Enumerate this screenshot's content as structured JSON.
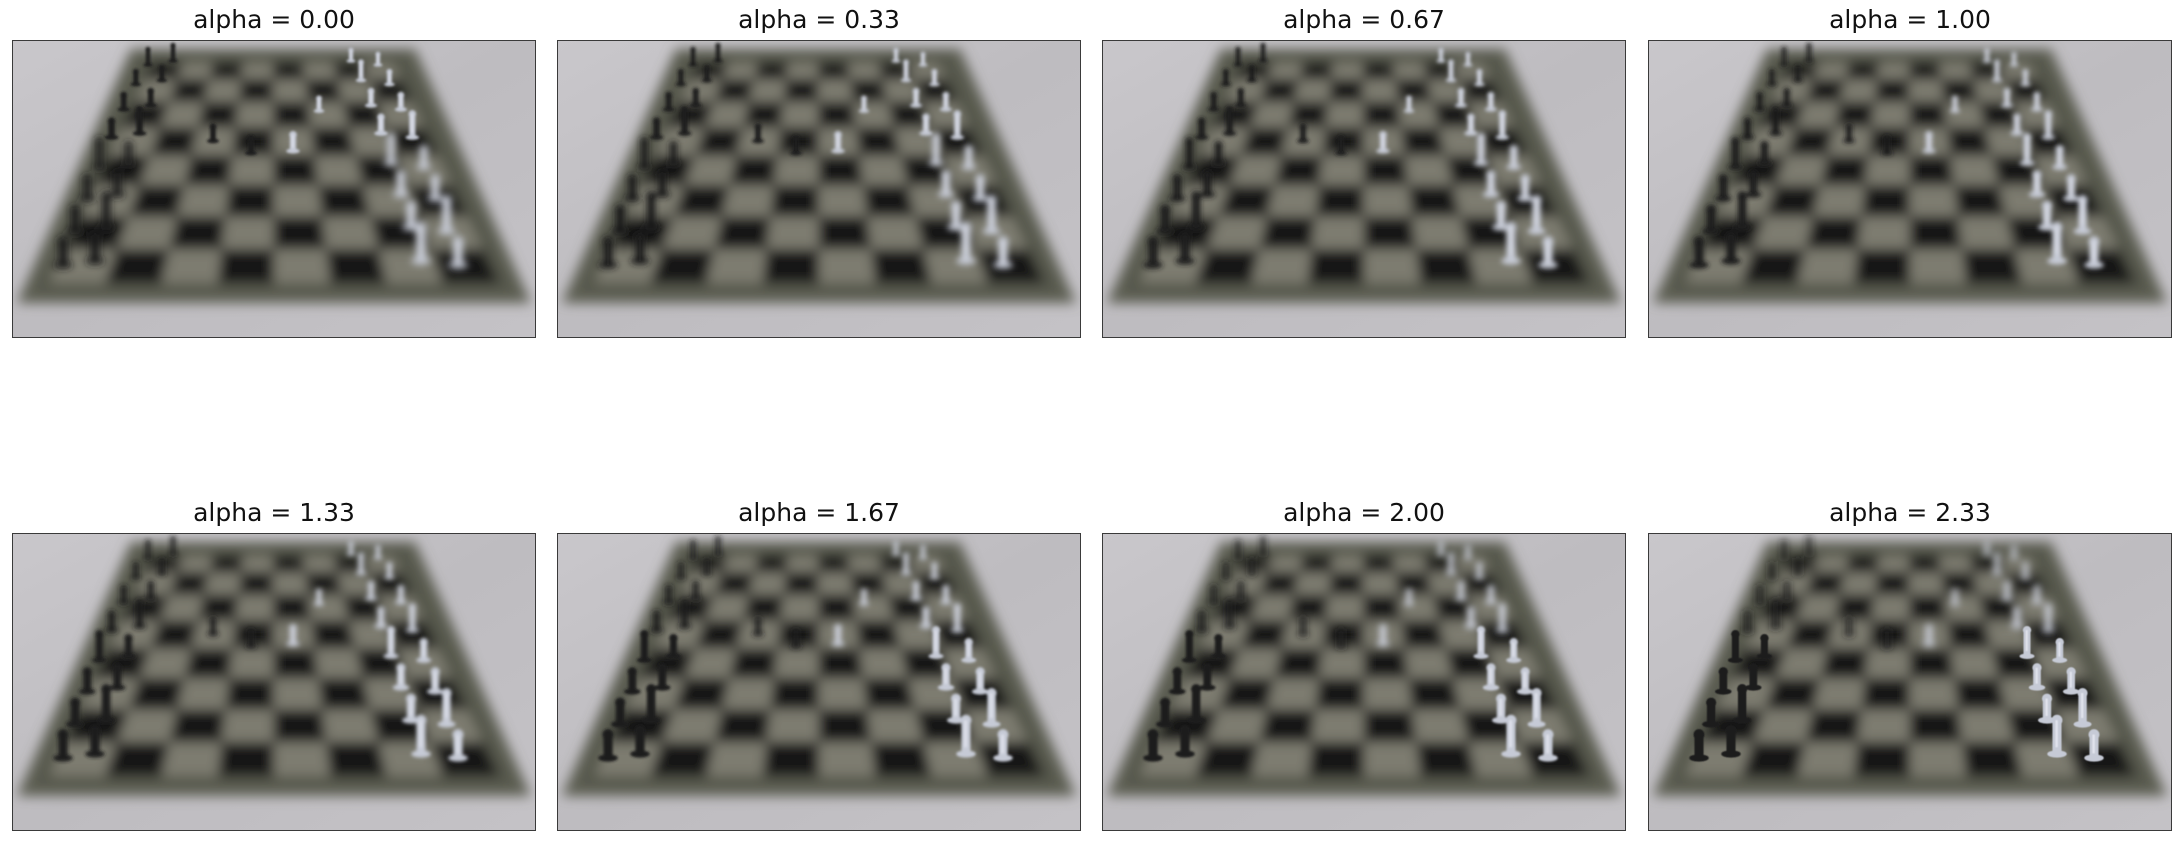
{
  "panels": [
    {
      "title": "alpha = 0.00",
      "alpha": 0.0,
      "image": "blurred-chessboard-photo"
    },
    {
      "title": "alpha = 0.33",
      "alpha": 0.33,
      "image": "blurred-chessboard-photo"
    },
    {
      "title": "alpha = 0.67",
      "alpha": 0.67,
      "image": "blurred-chessboard-photo"
    },
    {
      "title": "alpha = 1.00",
      "alpha": 1.0,
      "image": "blurred-chessboard-photo"
    },
    {
      "title": "alpha = 1.33",
      "alpha": 1.33,
      "image": "blurred-chessboard-photo"
    },
    {
      "title": "alpha = 1.67",
      "alpha": 1.67,
      "image": "blurred-chessboard-photo"
    },
    {
      "title": "alpha = 2.00",
      "alpha": 2.0,
      "image": "blurred-chessboard-photo"
    },
    {
      "title": "alpha = 2.33",
      "alpha": 2.33,
      "image": "blurred-chessboard-photo"
    }
  ],
  "colors": {
    "background_table": "#bebcc0",
    "board_frame": "#5d5f52",
    "light_square": "#7d7c70",
    "dark_square": "#161616",
    "black_piece": "#1d1d1f",
    "white_piece": "#c6cad6"
  }
}
